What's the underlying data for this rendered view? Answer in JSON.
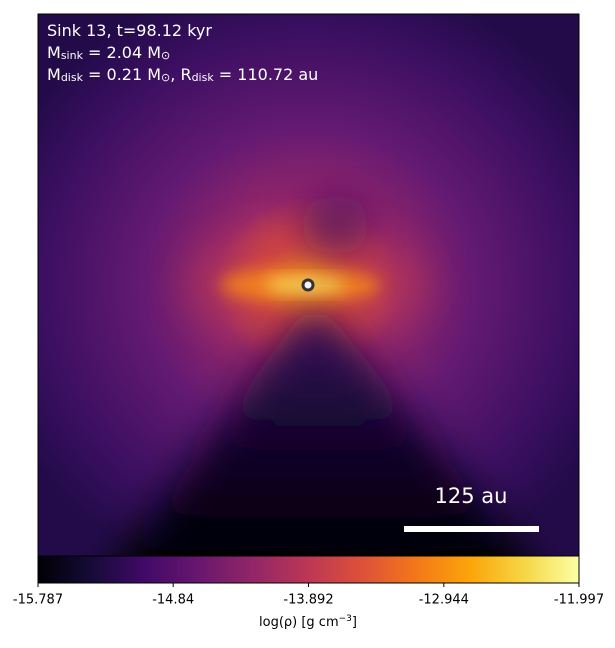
{
  "chart_data": {
    "type": "image",
    "annotations": [
      {
        "segments": [
          {
            "text": "Sink 13, t=98.12 kyr"
          }
        ]
      },
      {
        "segments": [
          {
            "text": "M"
          },
          {
            "sub": "sink"
          },
          {
            "text": " = 2.04 M"
          },
          {
            "sub": "⊙"
          }
        ]
      },
      {
        "segments": [
          {
            "text": "M"
          },
          {
            "sub": "disk"
          },
          {
            "text": " = 0.21 M"
          },
          {
            "sub": "⊙"
          },
          {
            "text": ", R"
          },
          {
            "sub": "disk"
          },
          {
            "text": " = 110.72 au"
          }
        ]
      }
    ],
    "scale_bar_label": "125 au",
    "colormap": "inferno",
    "colorbar": {
      "lim": [
        -15.787,
        -11.997
      ],
      "ticks": [
        -15.787,
        -14.84,
        -13.892,
        -12.944,
        -11.997
      ],
      "label": [
        {
          "text": "log(ρ) [g cm"
        },
        {
          "sup": "−3"
        },
        {
          "text": "]"
        }
      ]
    }
  }
}
